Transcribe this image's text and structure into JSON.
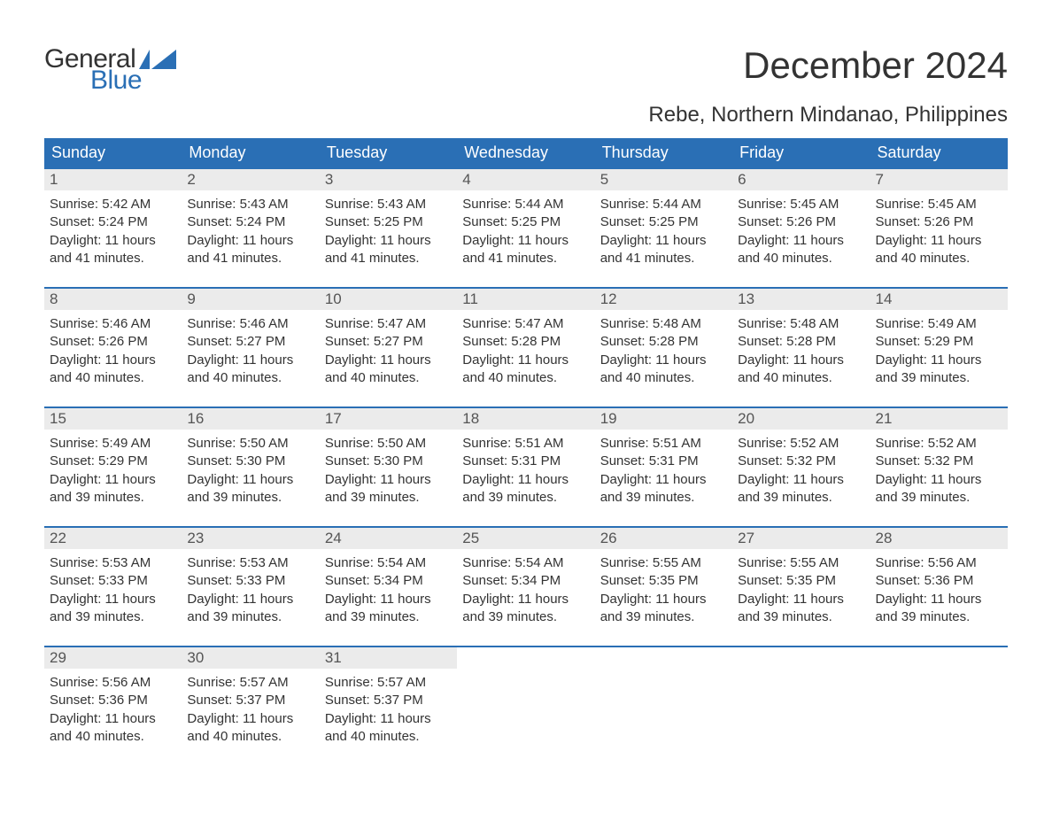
{
  "logo": {
    "word1": "General",
    "word2": "Blue",
    "flag_color": "#2a6fb5",
    "text_color1": "#333333",
    "text_color2": "#2a6fb5"
  },
  "title": "December 2024",
  "location": "Rebe, Northern Mindanao, Philippines",
  "colors": {
    "header_bg": "#2a6fb5",
    "header_text": "#ffffff",
    "row_border": "#2a6fb5",
    "daynum_bg": "#ebebeb",
    "daynum_text": "#555555",
    "body_text": "#333333",
    "page_bg": "#ffffff"
  },
  "typography": {
    "title_fontsize": 42,
    "location_fontsize": 24,
    "dayheader_fontsize": 18,
    "daynum_fontsize": 17,
    "daybody_fontsize": 15,
    "logo_fontsize": 30
  },
  "day_headers": [
    "Sunday",
    "Monday",
    "Tuesday",
    "Wednesday",
    "Thursday",
    "Friday",
    "Saturday"
  ],
  "weeks": [
    [
      {
        "n": "1",
        "sunrise": "5:42 AM",
        "sunset": "5:24 PM",
        "dl1": "11 hours",
        "dl2": "and 41 minutes."
      },
      {
        "n": "2",
        "sunrise": "5:43 AM",
        "sunset": "5:24 PM",
        "dl1": "11 hours",
        "dl2": "and 41 minutes."
      },
      {
        "n": "3",
        "sunrise": "5:43 AM",
        "sunset": "5:25 PM",
        "dl1": "11 hours",
        "dl2": "and 41 minutes."
      },
      {
        "n": "4",
        "sunrise": "5:44 AM",
        "sunset": "5:25 PM",
        "dl1": "11 hours",
        "dl2": "and 41 minutes."
      },
      {
        "n": "5",
        "sunrise": "5:44 AM",
        "sunset": "5:25 PM",
        "dl1": "11 hours",
        "dl2": "and 41 minutes."
      },
      {
        "n": "6",
        "sunrise": "5:45 AM",
        "sunset": "5:26 PM",
        "dl1": "11 hours",
        "dl2": "and 40 minutes."
      },
      {
        "n": "7",
        "sunrise": "5:45 AM",
        "sunset": "5:26 PM",
        "dl1": "11 hours",
        "dl2": "and 40 minutes."
      }
    ],
    [
      {
        "n": "8",
        "sunrise": "5:46 AM",
        "sunset": "5:26 PM",
        "dl1": "11 hours",
        "dl2": "and 40 minutes."
      },
      {
        "n": "9",
        "sunrise": "5:46 AM",
        "sunset": "5:27 PM",
        "dl1": "11 hours",
        "dl2": "and 40 minutes."
      },
      {
        "n": "10",
        "sunrise": "5:47 AM",
        "sunset": "5:27 PM",
        "dl1": "11 hours",
        "dl2": "and 40 minutes."
      },
      {
        "n": "11",
        "sunrise": "5:47 AM",
        "sunset": "5:28 PM",
        "dl1": "11 hours",
        "dl2": "and 40 minutes."
      },
      {
        "n": "12",
        "sunrise": "5:48 AM",
        "sunset": "5:28 PM",
        "dl1": "11 hours",
        "dl2": "and 40 minutes."
      },
      {
        "n": "13",
        "sunrise": "5:48 AM",
        "sunset": "5:28 PM",
        "dl1": "11 hours",
        "dl2": "and 40 minutes."
      },
      {
        "n": "14",
        "sunrise": "5:49 AM",
        "sunset": "5:29 PM",
        "dl1": "11 hours",
        "dl2": "and 39 minutes."
      }
    ],
    [
      {
        "n": "15",
        "sunrise": "5:49 AM",
        "sunset": "5:29 PM",
        "dl1": "11 hours",
        "dl2": "and 39 minutes."
      },
      {
        "n": "16",
        "sunrise": "5:50 AM",
        "sunset": "5:30 PM",
        "dl1": "11 hours",
        "dl2": "and 39 minutes."
      },
      {
        "n": "17",
        "sunrise": "5:50 AM",
        "sunset": "5:30 PM",
        "dl1": "11 hours",
        "dl2": "and 39 minutes."
      },
      {
        "n": "18",
        "sunrise": "5:51 AM",
        "sunset": "5:31 PM",
        "dl1": "11 hours",
        "dl2": "and 39 minutes."
      },
      {
        "n": "19",
        "sunrise": "5:51 AM",
        "sunset": "5:31 PM",
        "dl1": "11 hours",
        "dl2": "and 39 minutes."
      },
      {
        "n": "20",
        "sunrise": "5:52 AM",
        "sunset": "5:32 PM",
        "dl1": "11 hours",
        "dl2": "and 39 minutes."
      },
      {
        "n": "21",
        "sunrise": "5:52 AM",
        "sunset": "5:32 PM",
        "dl1": "11 hours",
        "dl2": "and 39 minutes."
      }
    ],
    [
      {
        "n": "22",
        "sunrise": "5:53 AM",
        "sunset": "5:33 PM",
        "dl1": "11 hours",
        "dl2": "and 39 minutes."
      },
      {
        "n": "23",
        "sunrise": "5:53 AM",
        "sunset": "5:33 PM",
        "dl1": "11 hours",
        "dl2": "and 39 minutes."
      },
      {
        "n": "24",
        "sunrise": "5:54 AM",
        "sunset": "5:34 PM",
        "dl1": "11 hours",
        "dl2": "and 39 minutes."
      },
      {
        "n": "25",
        "sunrise": "5:54 AM",
        "sunset": "5:34 PM",
        "dl1": "11 hours",
        "dl2": "and 39 minutes."
      },
      {
        "n": "26",
        "sunrise": "5:55 AM",
        "sunset": "5:35 PM",
        "dl1": "11 hours",
        "dl2": "and 39 minutes."
      },
      {
        "n": "27",
        "sunrise": "5:55 AM",
        "sunset": "5:35 PM",
        "dl1": "11 hours",
        "dl2": "and 39 minutes."
      },
      {
        "n": "28",
        "sunrise": "5:56 AM",
        "sunset": "5:36 PM",
        "dl1": "11 hours",
        "dl2": "and 39 minutes."
      }
    ],
    [
      {
        "n": "29",
        "sunrise": "5:56 AM",
        "sunset": "5:36 PM",
        "dl1": "11 hours",
        "dl2": "and 40 minutes."
      },
      {
        "n": "30",
        "sunrise": "5:57 AM",
        "sunset": "5:37 PM",
        "dl1": "11 hours",
        "dl2": "and 40 minutes."
      },
      {
        "n": "31",
        "sunrise": "5:57 AM",
        "sunset": "5:37 PM",
        "dl1": "11 hours",
        "dl2": "and 40 minutes."
      },
      null,
      null,
      null,
      null
    ]
  ],
  "labels": {
    "sunrise": "Sunrise: ",
    "sunset": "Sunset: ",
    "daylight": "Daylight: "
  }
}
